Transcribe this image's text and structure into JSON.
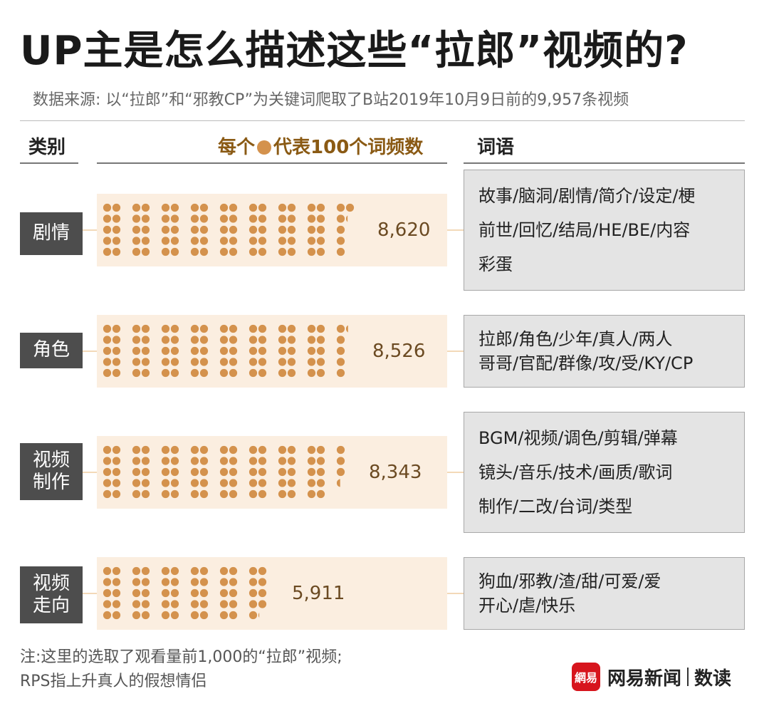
{
  "title": "UP主是怎么描述这些“拉郎”视频的?",
  "subtitle": "数据来源: 以“拉郎”和“邪教CP”为关键词爬取了B站2019年10月9日前的9,957条视频",
  "headers": {
    "category": "类别",
    "unit_prefix": "每个",
    "unit_suffix": "代表100个词频数",
    "words": "词语"
  },
  "chart_data": {
    "type": "pictograph",
    "unit": 100,
    "dot_color": "#d4924d",
    "bar_bg_color": "#fbeee0",
    "categories": [
      "剧情",
      "角色",
      "视频制作",
      "视频走向"
    ],
    "values": [
      8620,
      8526,
      8343,
      5911
    ],
    "value_labels": [
      "8,620",
      "8,526",
      "8,343",
      "5,911"
    ]
  },
  "rows": [
    {
      "category_lines": [
        "剧情"
      ],
      "value_label": "8,620",
      "words": [
        "故事/脑洞/剧情/简介/设定/梗",
        "前世/回忆/结局/HE/BE/内容",
        "彩蛋"
      ]
    },
    {
      "category_lines": [
        "角色"
      ],
      "value_label": "8,526",
      "words": [
        "拉郎/角色/少年/真人/两人",
        "哥哥/官配/群像/攻/受/KY/CP"
      ]
    },
    {
      "category_lines": [
        "视频",
        "制作"
      ],
      "value_label": "8,343",
      "words": [
        "BGM/视频/调色/剪辑/弹幕",
        "镜头/音乐/技术/画质/歌词",
        "制作/二改/台词/类型"
      ]
    },
    {
      "category_lines": [
        "视频",
        "走向"
      ],
      "value_label": "5,911",
      "words": [
        "狗血/邪教/渣/甜/可爱/爱",
        "开心/虐/快乐"
      ]
    }
  ],
  "note": [
    "注:这里的选取了观看量前1,000的“拉郎”视频;",
    "RPS指上升真人的假想情侣"
  ],
  "brand": {
    "logo_text": "網易",
    "name": "网易新闻",
    "sub": "数读",
    "logo_color": "#d7151d"
  }
}
